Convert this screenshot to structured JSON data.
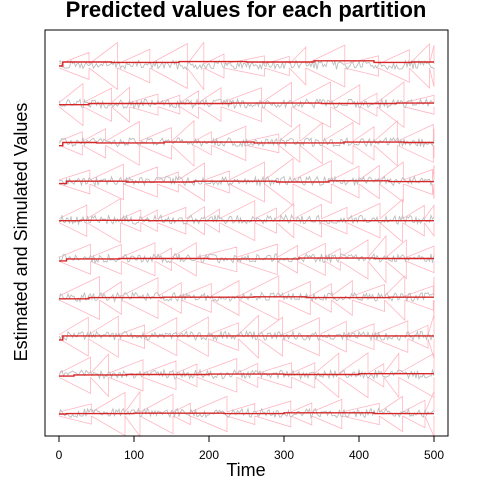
{
  "chart_data": {
    "type": "line",
    "title": "Predicted values for each partition",
    "xlabel": "Time",
    "ylabel": "Estimated and Simulated Values",
    "xlim": [
      0,
      500
    ],
    "x_ticks": [
      0,
      100,
      200,
      300,
      400,
      500
    ],
    "x_tick_labels": [
      "0",
      "100",
      "200",
      "300",
      "400",
      "500"
    ],
    "y_ticks_shown": false,
    "grid": false,
    "legend": "none",
    "colors": {
      "simulated": "#bebebe",
      "predicted": "#d62728",
      "interval": "#ffb6c1",
      "frame": "#000000"
    },
    "partition_count": 10,
    "series_kinds": [
      "simulated",
      "predicted",
      "interval"
    ],
    "partitions": [
      {
        "index": 1,
        "steps": [
          [
            0,
            0.0
          ],
          [
            5,
            0.5
          ],
          [
            70,
            0.45
          ],
          [
            160,
            0.55
          ],
          [
            250,
            0.5
          ],
          [
            340,
            0.65
          ],
          [
            420,
            0.45
          ],
          [
            470,
            0.5
          ]
        ]
      },
      {
        "index": 2,
        "steps": [
          [
            0,
            0.0
          ],
          [
            22,
            0.0
          ],
          [
            40,
            0.15
          ],
          [
            230,
            0.2
          ],
          [
            350,
            0.15
          ],
          [
            450,
            0.2
          ]
        ]
      },
      {
        "index": 3,
        "steps": [
          [
            0,
            -0.3
          ],
          [
            5,
            0.1
          ],
          [
            50,
            0.05
          ],
          [
            140,
            0.15
          ],
          [
            260,
            0.05
          ],
          [
            380,
            0.15
          ],
          [
            460,
            0.1
          ]
        ]
      },
      {
        "index": 4,
        "steps": [
          [
            0,
            -0.2
          ],
          [
            10,
            0.1
          ],
          [
            90,
            0.0
          ],
          [
            180,
            0.1
          ],
          [
            290,
            0.0
          ],
          [
            360,
            0.15
          ],
          [
            440,
            0.05
          ]
        ]
      },
      {
        "index": 5,
        "steps": [
          [
            0,
            0.0
          ],
          [
            30,
            0.05
          ],
          [
            120,
            0.0
          ],
          [
            230,
            0.0
          ],
          [
            330,
            0.0
          ],
          [
            430,
            0.0
          ]
        ]
      },
      {
        "index": 6,
        "steps": [
          [
            0,
            -0.2
          ],
          [
            10,
            0.05
          ],
          [
            80,
            0.1
          ],
          [
            200,
            0.05
          ],
          [
            320,
            0.15
          ],
          [
            420,
            0.1
          ]
        ]
      },
      {
        "index": 7,
        "steps": [
          [
            0,
            -0.1
          ],
          [
            40,
            0.05
          ],
          [
            140,
            0.1
          ],
          [
            260,
            0.15
          ],
          [
            330,
            0.05
          ],
          [
            440,
            0.1
          ]
        ]
      },
      {
        "index": 8,
        "steps": [
          [
            0,
            -0.4
          ],
          [
            5,
            0.1
          ],
          [
            120,
            0.1
          ],
          [
            250,
            0.1
          ],
          [
            360,
            0.1
          ]
        ]
      },
      {
        "index": 9,
        "steps": [
          [
            0,
            -0.1
          ],
          [
            20,
            0.05
          ],
          [
            90,
            0.1
          ],
          [
            200,
            0.15
          ],
          [
            300,
            0.1
          ],
          [
            400,
            0.2
          ]
        ]
      },
      {
        "index": 10,
        "steps": [
          [
            0,
            0.0
          ],
          [
            10,
            0.05
          ],
          [
            100,
            0.1
          ],
          [
            220,
            0.05
          ],
          [
            300,
            0.15
          ],
          [
            420,
            0.05
          ]
        ]
      }
    ]
  }
}
